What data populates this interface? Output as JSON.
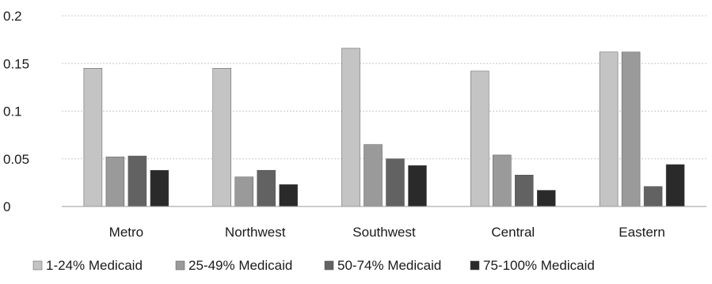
{
  "chart_data": {
    "type": "bar",
    "title": "",
    "xlabel": "",
    "ylabel": "",
    "categories": [
      "Metro",
      "Northwest",
      "Southwest",
      "Central",
      "Eastern"
    ],
    "ylim": [
      0,
      0.2
    ],
    "yticks": [
      "0",
      "0.05",
      "0.1",
      "0.15",
      "0.2"
    ],
    "grid": true,
    "legend_position": "bottom",
    "series": [
      {
        "name": "1-24% Medicaid",
        "color": "#c4c4c4",
        "values": [
          0.145,
          0.145,
          0.166,
          0.142,
          0.162
        ]
      },
      {
        "name": "25-49% Medicaid",
        "color": "#9a9a9a",
        "values": [
          0.052,
          0.031,
          0.065,
          0.054,
          0.162
        ]
      },
      {
        "name": "50-74% Medicaid",
        "color": "#626262",
        "values": [
          0.053,
          0.038,
          0.05,
          0.033,
          0.021
        ]
      },
      {
        "name": "75-100% Medicaid",
        "color": "#2a2a2a",
        "values": [
          0.038,
          0.023,
          0.043,
          0.017,
          0.044
        ]
      }
    ]
  }
}
